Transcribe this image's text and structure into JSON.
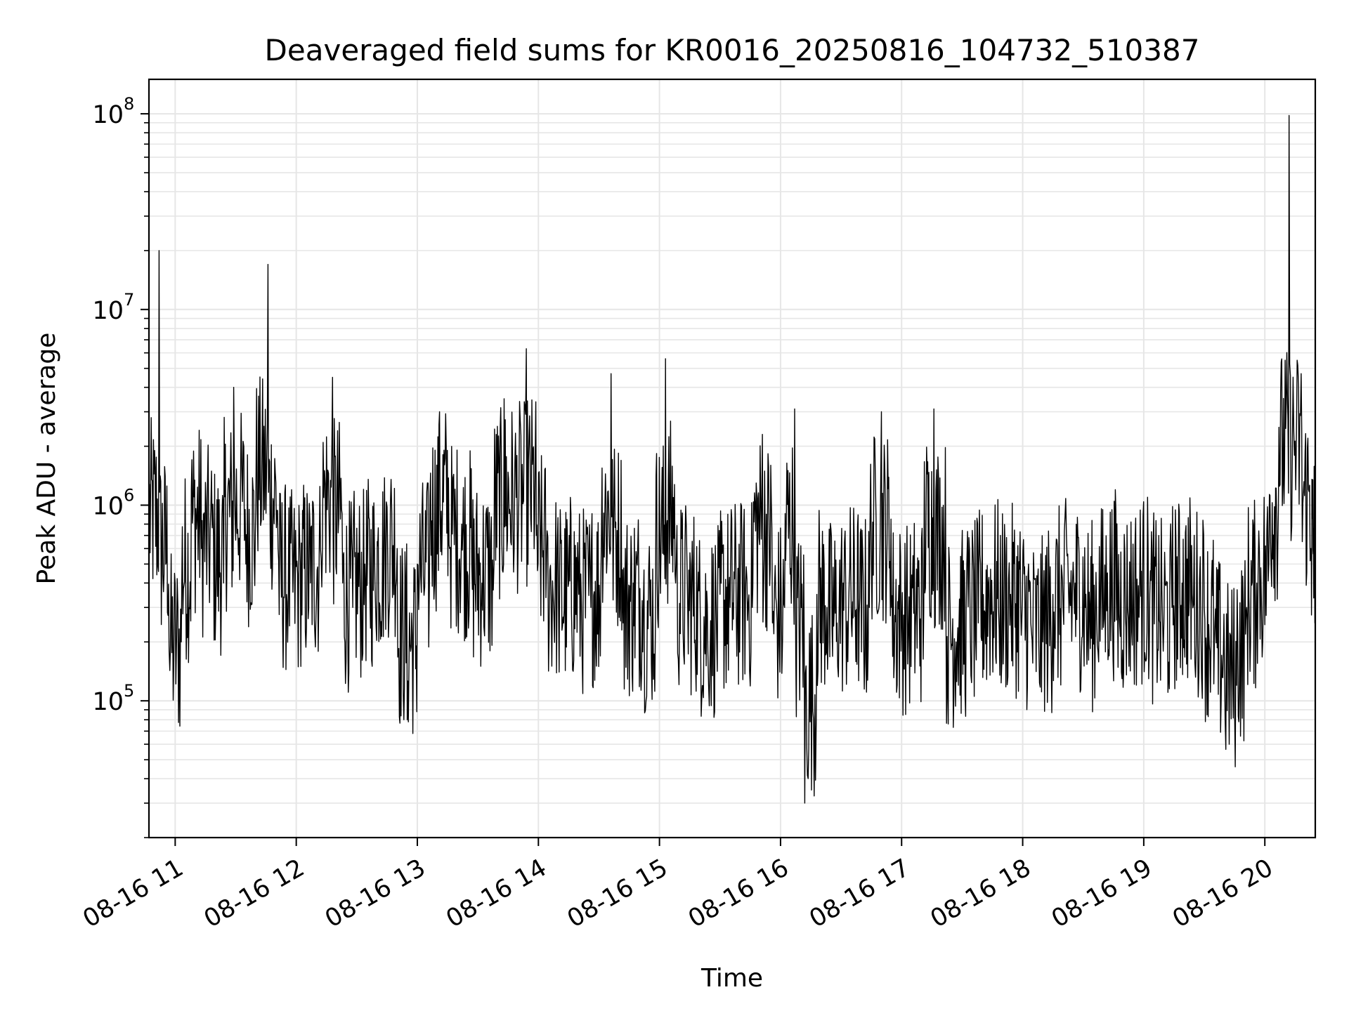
{
  "chart_data": {
    "type": "line",
    "title": "Deaveraged field sums for KR0016_20250816_104732_510387",
    "xlabel": "Time",
    "ylabel": "Peak ADU - average",
    "yscale": "log",
    "ylim": [
      20000,
      150000000
    ],
    "xlim": [
      "2025-08-16 10:47",
      "2025-08-16 20:25"
    ],
    "grid": true,
    "line_color": "#000000",
    "x_ticks": [
      "08-16 11",
      "08-16 12",
      "08-16 13",
      "08-16 14",
      "08-16 15",
      "08-16 16",
      "08-16 17",
      "08-16 18",
      "08-16 19",
      "08-16 20"
    ],
    "x_tick_times": [
      "2025-08-16 11:00",
      "2025-08-16 12:00",
      "2025-08-16 13:00",
      "2025-08-16 14:00",
      "2025-08-16 15:00",
      "2025-08-16 16:00",
      "2025-08-16 17:00",
      "2025-08-16 18:00",
      "2025-08-16 19:00",
      "2025-08-16 20:00"
    ],
    "y_ticks": [
      {
        "value": 100000,
        "base": "10",
        "exp": "5"
      },
      {
        "value": 1000000,
        "base": "10",
        "exp": "6"
      },
      {
        "value": 10000000,
        "base": "10",
        "exp": "7"
      },
      {
        "value": 100000000,
        "base": "10",
        "exp": "8"
      }
    ],
    "series": [
      {
        "x": [
          "2025-08-16 10:47",
          "2025-08-16 10:52",
          "2025-08-16 10:57",
          "2025-08-16 11:03",
          "2025-08-16 11:08",
          "2025-08-16 11:13",
          "2025-08-16 11:19",
          "2025-08-16 11:24",
          "2025-08-16 11:29",
          "2025-08-16 11:35",
          "2025-08-16 11:40",
          "2025-08-16 11:46",
          "2025-08-16 11:51",
          "2025-08-16 11:56",
          "2025-08-16 12:02",
          "2025-08-16 12:07",
          "2025-08-16 12:12",
          "2025-08-16 12:18",
          "2025-08-16 12:23",
          "2025-08-16 12:28",
          "2025-08-16 12:34",
          "2025-08-16 12:39",
          "2025-08-16 12:44",
          "2025-08-16 12:50",
          "2025-08-16 12:55",
          "2025-08-16 13:00",
          "2025-08-16 13:06",
          "2025-08-16 13:11",
          "2025-08-16 13:16",
          "2025-08-16 13:22",
          "2025-08-16 13:27",
          "2025-08-16 13:32",
          "2025-08-16 13:38",
          "2025-08-16 13:43",
          "2025-08-16 13:48",
          "2025-08-16 13:54",
          "2025-08-16 13:59",
          "2025-08-16 14:04",
          "2025-08-16 14:10",
          "2025-08-16 14:15",
          "2025-08-16 14:20",
          "2025-08-16 14:26",
          "2025-08-16 14:31",
          "2025-08-16 14:36",
          "2025-08-16 14:42",
          "2025-08-16 14:47",
          "2025-08-16 14:52",
          "2025-08-16 14:58",
          "2025-08-16 15:03",
          "2025-08-16 15:08",
          "2025-08-16 15:14",
          "2025-08-16 15:19",
          "2025-08-16 15:24",
          "2025-08-16 15:30",
          "2025-08-16 15:35",
          "2025-08-16 15:40",
          "2025-08-16 15:46",
          "2025-08-16 15:51",
          "2025-08-16 15:56",
          "2025-08-16 16:02",
          "2025-08-16 16:07",
          "2025-08-16 16:12",
          "2025-08-16 16:18",
          "2025-08-16 16:23",
          "2025-08-16 16:28",
          "2025-08-16 16:34",
          "2025-08-16 16:39",
          "2025-08-16 16:44",
          "2025-08-16 16:50",
          "2025-08-16 16:55",
          "2025-08-16 17:00",
          "2025-08-16 17:06",
          "2025-08-16 17:11",
          "2025-08-16 17:16",
          "2025-08-16 17:22",
          "2025-08-16 17:27",
          "2025-08-16 17:32",
          "2025-08-16 17:38",
          "2025-08-16 17:43",
          "2025-08-16 17:48",
          "2025-08-16 17:54",
          "2025-08-16 17:59",
          "2025-08-16 18:04",
          "2025-08-16 18:10",
          "2025-08-16 18:15",
          "2025-08-16 18:20",
          "2025-08-16 18:26",
          "2025-08-16 18:31",
          "2025-08-16 18:36",
          "2025-08-16 18:42",
          "2025-08-16 18:47",
          "2025-08-16 18:52",
          "2025-08-16 18:58",
          "2025-08-16 19:03",
          "2025-08-16 19:08",
          "2025-08-16 19:14",
          "2025-08-16 19:19",
          "2025-08-16 19:24",
          "2025-08-16 19:30",
          "2025-08-16 19:35",
          "2025-08-16 19:40",
          "2025-08-16 19:46",
          "2025-08-16 19:51",
          "2025-08-16 19:56",
          "2025-08-16 20:02",
          "2025-08-16 20:07",
          "2025-08-16 20:12",
          "2025-08-16 20:18",
          "2025-08-16 20:23",
          "2025-08-16 20:25"
        ],
        "y": [
          400000,
          20000000,
          180000,
          200000,
          1200000,
          600000,
          700000,
          400000,
          4000000,
          500000,
          1100000,
          17000000,
          600000,
          300000,
          500000,
          400000,
          600000,
          4500000,
          400000,
          300000,
          500000,
          400000,
          700000,
          600000,
          80000,
          500000,
          400000,
          3000000,
          600000,
          800000,
          500000,
          400000,
          500000,
          3500000,
          600000,
          6300000,
          700000,
          500000,
          300000,
          400000,
          350000,
          300000,
          450000,
          4700000,
          250000,
          400000,
          300000,
          250000,
          5600000,
          400000,
          300000,
          350000,
          180000,
          350000,
          300000,
          400000,
          300000,
          2300000,
          250000,
          300000,
          3100000,
          30000,
          350000,
          300000,
          250000,
          400000,
          280000,
          300000,
          3000000,
          300000,
          250000,
          280000,
          300000,
          3100000,
          250000,
          200000,
          300000,
          250000,
          400000,
          300000,
          350000,
          300000,
          250000,
          200000,
          350000,
          300000,
          400000,
          300000,
          250000,
          450000,
          350000,
          300000,
          400000,
          350000,
          250000,
          300000,
          400000,
          350000,
          300000,
          200000,
          150000,
          120000,
          300000,
          400000,
          500000,
          2500000,
          98000000,
          4700000,
          600000,
          650000
        ]
      }
    ]
  }
}
